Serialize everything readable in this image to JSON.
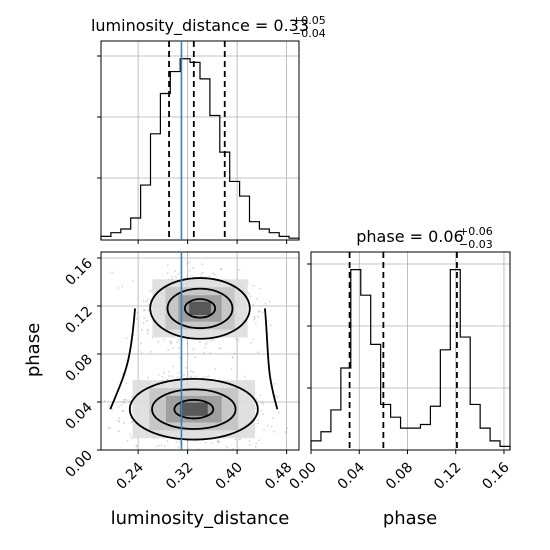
{
  "chart_data": {
    "type": "corner",
    "panels": [
      {
        "kind": "histogram",
        "parameter": "luminosity_distance",
        "title_text": "luminosity_distance = 0.33",
        "title_sup": "+0.05",
        "title_sub": "−0.04",
        "xlim": [
          0.18,
          0.5
        ],
        "bin_edges": [
          0.18,
          0.196,
          0.212,
          0.228,
          0.244,
          0.26,
          0.276,
          0.292,
          0.308,
          0.324,
          0.34,
          0.356,
          0.372,
          0.388,
          0.404,
          0.42,
          0.436,
          0.452,
          0.468,
          0.484,
          0.5
        ],
        "counts": [
          0.02,
          0.04,
          0.06,
          0.12,
          0.3,
          0.58,
          0.8,
          0.92,
          0.99,
          0.97,
          0.88,
          0.68,
          0.48,
          0.32,
          0.24,
          0.1,
          0.06,
          0.04,
          0.02,
          0.01
        ],
        "quantiles": [
          0.29,
          0.33,
          0.38
        ],
        "truth": 0.31
      },
      {
        "kind": "histogram",
        "parameter": "phase",
        "title_text": "phase = 0.06",
        "title_sup": "+0.06",
        "title_sub": "−0.03",
        "xlim": [
          0.0,
          0.165
        ],
        "bin_edges": [
          0.0,
          0.00825,
          0.0165,
          0.02475,
          0.033,
          0.04125,
          0.0495,
          0.05775,
          0.066,
          0.07425,
          0.0825,
          0.09075,
          0.099,
          0.10725,
          0.1155,
          0.12375,
          0.132,
          0.14025,
          0.1485,
          0.15675,
          0.165
        ],
        "counts": [
          0.05,
          0.1,
          0.22,
          0.45,
          0.99,
          0.85,
          0.58,
          0.25,
          0.18,
          0.12,
          0.12,
          0.14,
          0.24,
          0.55,
          0.99,
          0.62,
          0.25,
          0.12,
          0.05,
          0.02
        ],
        "quantiles": [
          0.032,
          0.06,
          0.121
        ]
      },
      {
        "kind": "scatter_density",
        "x_parameter": "luminosity_distance",
        "y_parameter": "phase",
        "xlim": [
          0.18,
          0.5
        ],
        "ylim": [
          0.0,
          0.165
        ],
        "modes": [
          {
            "x": 0.34,
            "y": 0.118,
            "sx": 0.035,
            "sy": 0.011,
            "weight": 0.45
          },
          {
            "x": 0.33,
            "y": 0.034,
            "sx": 0.045,
            "sy": 0.011,
            "weight": 0.55
          }
        ],
        "truth_x": 0.31
      }
    ],
    "xticks_distance": [
      "0.24",
      "0.32",
      "0.40",
      "0.48"
    ],
    "xticks_distance_values": [
      0.24,
      0.32,
      0.4,
      0.48
    ],
    "phase_ticks": [
      "0.00",
      "0.04",
      "0.08",
      "0.12",
      "0.16"
    ],
    "phase_tick_values": [
      0.0,
      0.04,
      0.08,
      0.12,
      0.16
    ],
    "xlabel_distance": "luminosity_distance",
    "xlabel_phase": "phase",
    "ylabel_phase": "phase",
    "truth_color": "#3d7fb5",
    "hist_color": "#000000",
    "grid": true
  }
}
